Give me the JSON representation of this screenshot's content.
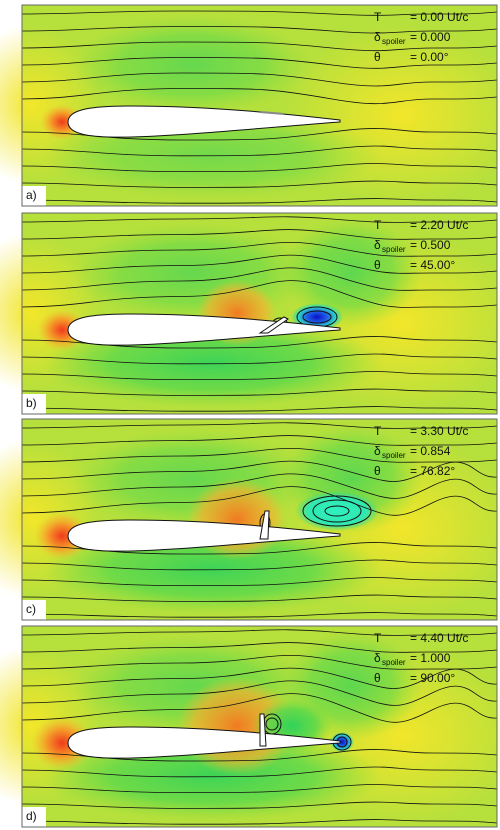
{
  "panels": [
    {
      "label": "a)",
      "legend": [
        {
          "symbol": "T",
          "value": "= 0.00 Ut/c"
        },
        {
          "symbol": "δ",
          "subscript": "spoiler",
          "value": "= 0.000"
        },
        {
          "symbol": "θ",
          "value": "= 0.00°"
        }
      ]
    },
    {
      "label": "b)",
      "legend": [
        {
          "symbol": "T",
          "value": "= 2.20 Ut/c"
        },
        {
          "symbol": "δ",
          "subscript": "spoiler",
          "value": "= 0.500"
        },
        {
          "symbol": "θ",
          "value": "= 45.00°"
        }
      ]
    },
    {
      "label": "c)",
      "legend": [
        {
          "symbol": "T",
          "value": "= 3.30 Ut/c"
        },
        {
          "symbol": "δ",
          "subscript": "spoiler",
          "value": "= 0.854"
        },
        {
          "symbol": "θ",
          "value": "= 76.82°"
        }
      ]
    },
    {
      "label": "d)",
      "legend": [
        {
          "symbol": "T",
          "value": "= 4.40 Ut/c"
        },
        {
          "symbol": "δ",
          "subscript": "spoiler",
          "value": "= 1.000"
        },
        {
          "symbol": "θ",
          "value": "= 90.00°"
        }
      ]
    }
  ]
}
